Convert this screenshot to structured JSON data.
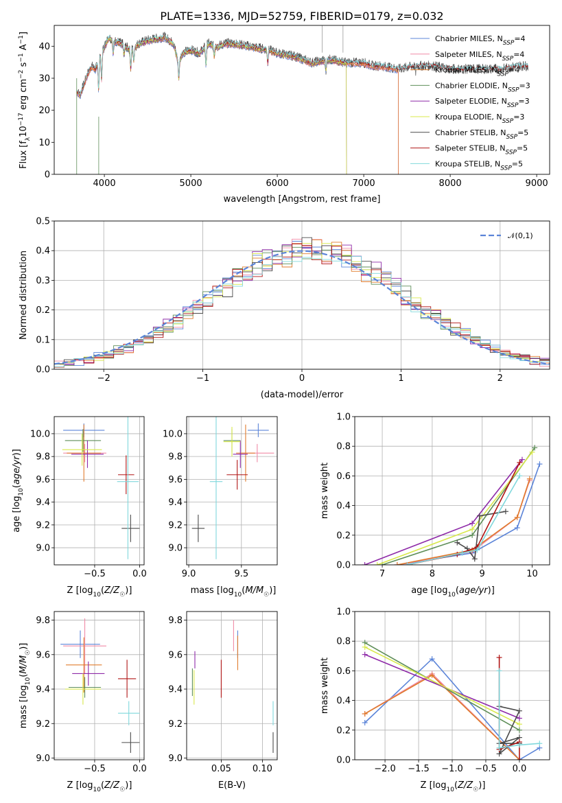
{
  "figure_title": "PLATE=1336, MJD=52759, FIBERID=0179, z=0.032",
  "series_colors": [
    "#5b84d8",
    "#f08aa6",
    "#e07b2c",
    "#5e8e58",
    "#8e2aa8",
    "#d8e84a",
    "#4a4a4a",
    "#b01414",
    "#7fd8dc"
  ],
  "chart_data": [
    {
      "type": "line",
      "panel": "spectrum",
      "xlabel": "wavelength [Angstrom, rest frame]",
      "ylabel": "Flux [fλ10⁻¹⁷ erg cm⁻² s⁻¹ A⁻¹]",
      "xlim": [
        3420,
        9150
      ],
      "ylim": [
        0,
        46.5
      ],
      "xticks": [
        4000,
        5000,
        6000,
        7000,
        8000,
        9000
      ],
      "yticks": [
        0,
        10,
        20,
        30,
        40
      ],
      "legend_position": "upper right",
      "series": [
        {
          "name": "Chabrier MILES, N_SSP=4",
          "x_range": [
            3680,
            7400
          ]
        },
        {
          "name": "Salpeter MILES, N_SSP=4",
          "x_range": [
            3680,
            7400
          ]
        },
        {
          "name": "Kroupa MILES, N_SSP=4",
          "x_range": [
            3680,
            7400
          ]
        },
        {
          "name": "Chabrier ELODIE, N_SSP=3",
          "x_range": [
            3900,
            6800
          ]
        },
        {
          "name": "Salpeter ELODIE, N_SSP=3",
          "x_range": [
            3900,
            6800
          ]
        },
        {
          "name": "Kroupa ELODIE, N_SSP=3",
          "x_range": [
            3900,
            6800
          ]
        },
        {
          "name": "Chabrier STELIB, N_SSP=5",
          "x_range": [
            3680,
            8900
          ]
        },
        {
          "name": "Salpeter STELIB, N_SSP=5",
          "x_range": [
            3680,
            8900
          ]
        },
        {
          "name": "Kroupa STELIB, N_SSP=5",
          "x_range": [
            3680,
            8900
          ]
        }
      ],
      "continuum": {
        "x": [
          3680,
          3720,
          3800,
          3850,
          3900,
          3950,
          4000,
          4050,
          4100,
          4200,
          4300,
          4400,
          4500,
          4700,
          4800,
          4860,
          4900,
          5000,
          5100,
          5200,
          5300,
          5400,
          5500,
          5700,
          5900,
          6000,
          6200,
          6400,
          6600,
          6800,
          7000,
          7100,
          7200,
          7400,
          7600,
          7800,
          8000,
          8200,
          8400,
          8600,
          8800,
          8900
        ],
        "y": [
          25,
          24,
          30,
          33,
          32,
          36,
          39,
          42,
          41,
          40,
          38,
          40,
          41,
          42,
          40,
          34,
          37,
          38,
          37,
          40,
          39,
          40,
          40,
          39,
          38,
          37,
          36,
          34,
          35,
          34,
          34,
          33,
          33,
          32,
          33,
          33,
          32,
          32,
          32,
          32,
          33,
          33
        ]
      }
    },
    {
      "type": "histogram",
      "panel": "residuals",
      "xlabel": "(data-model)/error",
      "ylabel": "Normed distribution",
      "xlim": [
        -2.5,
        2.5
      ],
      "ylim": [
        0,
        0.5
      ],
      "xticks": [
        -2,
        -1,
        0,
        1,
        2
      ],
      "yticks": [
        0.0,
        0.1,
        0.2,
        0.3,
        0.4,
        0.5
      ],
      "grid": true,
      "legend": "𝒩(0,1)",
      "legend_position": "upper right",
      "bin_width": 0.1,
      "reference_curve": "standard normal pdf"
    },
    {
      "type": "scatter",
      "panel": "age-vs-Z",
      "xlabel": "Z [log10(Z/Z☉)]",
      "ylabel": "age  [log10(age/yr)]",
      "xlim": [
        -0.95,
        0.05
      ],
      "ylim": [
        8.85,
        10.15
      ],
      "xticks": [
        -0.5,
        0.0
      ],
      "yticks": [
        9.0,
        9.2,
        9.4,
        9.6,
        9.8,
        10.0
      ],
      "points": [
        {
          "x": -0.62,
          "y": 10.03,
          "xerr": 0.23,
          "yerr": 0.06
        },
        {
          "x": -0.61,
          "y": 9.83,
          "xerr": 0.24,
          "yerr": 0.08
        },
        {
          "x": -0.62,
          "y": 9.83,
          "xerr": 0.19,
          "yerr": 0.25
        },
        {
          "x": -0.63,
          "y": 9.94,
          "xerr": 0.2,
          "yerr": 0.1
        },
        {
          "x": -0.58,
          "y": 9.82,
          "xerr": 0.18,
          "yerr": 0.12
        },
        {
          "x": -0.64,
          "y": 9.86,
          "xerr": 0.22,
          "yerr": 0.14
        },
        {
          "x": -0.1,
          "y": 9.17,
          "xerr": 0.1,
          "yerr": 0.12
        },
        {
          "x": -0.15,
          "y": 9.64,
          "xerr": 0.09,
          "yerr": 0.17
        },
        {
          "x": -0.13,
          "y": 9.58,
          "xerr": 0.12,
          "yerr": 0.68
        }
      ]
    },
    {
      "type": "scatter",
      "panel": "age-vs-mass",
      "xlabel": "mass [log10(M/M☉)]",
      "ylabel": "",
      "xlim": [
        8.98,
        9.84
      ],
      "ylim": [
        8.85,
        10.15
      ],
      "xticks": [
        9.0,
        9.5
      ],
      "yticks": [
        9.0,
        9.2,
        9.4,
        9.6,
        9.8,
        10.0
      ],
      "points": [
        {
          "x": 9.66,
          "y": 10.03,
          "xerr": 0.1,
          "yerr": 0.06
        },
        {
          "x": 9.65,
          "y": 9.83,
          "xerr": 0.16,
          "yerr": 0.08
        },
        {
          "x": 9.54,
          "y": 9.83,
          "xerr": 0.09,
          "yerr": 0.25
        },
        {
          "x": 9.41,
          "y": 9.94,
          "xerr": 0.08,
          "yerr": 0.1
        },
        {
          "x": 9.49,
          "y": 9.82,
          "xerr": 0.07,
          "yerr": 0.12
        },
        {
          "x": 9.41,
          "y": 9.93,
          "xerr": 0.08,
          "yerr": 0.13
        },
        {
          "x": 9.09,
          "y": 9.17,
          "xerr": 0.06,
          "yerr": 0.12
        },
        {
          "x": 9.46,
          "y": 9.64,
          "xerr": 0.1,
          "yerr": 0.13
        },
        {
          "x": 9.26,
          "y": 9.58,
          "xerr": 0.06,
          "yerr": 0.68
        }
      ]
    },
    {
      "type": "line",
      "panel": "weight-vs-age",
      "xlabel": "age  [log10(age/yr)]",
      "ylabel": "mass weight",
      "xlim": [
        6.45,
        10.35
      ],
      "ylim": [
        0,
        1
      ],
      "xticks": [
        7,
        8,
        9,
        10
      ],
      "yticks": [
        0.0,
        0.2,
        0.4,
        0.6,
        0.8,
        1.0
      ],
      "grid": true,
      "series": [
        {
          "x": [
            7.3,
            8.8,
            9.7,
            10.15
          ],
          "y": [
            0.0,
            0.08,
            0.25,
            0.68
          ]
        },
        {
          "x": [
            7.3,
            8.8,
            9.7,
            9.95
          ],
          "y": [
            0.0,
            0.09,
            0.32,
            0.57
          ]
        },
        {
          "x": [
            7.3,
            8.8,
            9.7,
            9.95
          ],
          "y": [
            0.0,
            0.1,
            0.32,
            0.58
          ]
        },
        {
          "x": [
            7.0,
            8.8,
            10.05
          ],
          "y": [
            0.0,
            0.2,
            0.79
          ]
        },
        {
          "x": [
            6.65,
            8.8,
            9.8
          ],
          "y": [
            0.0,
            0.28,
            0.71
          ]
        },
        {
          "x": [
            6.9,
            8.8,
            10.0
          ],
          "y": [
            0.0,
            0.24,
            0.76
          ]
        },
        {
          "x": [
            8.5,
            8.7,
            8.85,
            8.95,
            9.47
          ],
          "y": [
            0.15,
            0.11,
            0.04,
            0.33,
            0.36
          ]
        },
        {
          "x": [
            7.5,
            8.5,
            8.9,
            9.75
          ],
          "y": [
            0.0,
            0.07,
            0.12,
            0.69
          ]
        },
        {
          "x": [
            7.5,
            8.6,
            8.9,
            9.75
          ],
          "y": [
            0.0,
            0.08,
            0.1,
            0.6
          ]
        }
      ]
    },
    {
      "type": "scatter",
      "panel": "mass-vs-Z",
      "xlabel": "Z [log10(Z/Z☉)]",
      "ylabel": "mass [log10(M/M☉)]",
      "xlim": [
        -0.95,
        0.05
      ],
      "ylim": [
        8.99,
        9.85
      ],
      "xticks": [
        -0.5,
        0.0
      ],
      "yticks": [
        9.0,
        9.2,
        9.4,
        9.6,
        9.8
      ],
      "points": [
        {
          "x": -0.66,
          "y": 9.66,
          "xerr": 0.22,
          "yerr": 0.08
        },
        {
          "x": -0.61,
          "y": 9.65,
          "xerr": 0.24,
          "yerr": 0.16
        },
        {
          "x": -0.62,
          "y": 9.54,
          "xerr": 0.2,
          "yerr": 0.16
        },
        {
          "x": -0.61,
          "y": 9.41,
          "xerr": 0.18,
          "yerr": 0.06
        },
        {
          "x": -0.57,
          "y": 9.49,
          "xerr": 0.18,
          "yerr": 0.07
        },
        {
          "x": -0.63,
          "y": 9.4,
          "xerr": 0.2,
          "yerr": 0.09
        },
        {
          "x": -0.1,
          "y": 9.09,
          "xerr": 0.1,
          "yerr": 0.06
        },
        {
          "x": -0.14,
          "y": 9.46,
          "xerr": 0.1,
          "yerr": 0.11
        },
        {
          "x": -0.12,
          "y": 9.26,
          "xerr": 0.12,
          "yerr": 0.07
        }
      ]
    },
    {
      "type": "scatter",
      "panel": "mass-vs-EBV",
      "xlabel": "E(B-V)",
      "ylabel": "",
      "xlim": [
        0.008,
        0.118
      ],
      "ylim": [
        8.99,
        9.85
      ],
      "xticks": [
        0.05,
        0.1
      ],
      "yticks": [
        9.0,
        9.2,
        9.4,
        9.6,
        9.8
      ],
      "points": [
        {
          "x": 0.07,
          "y": 9.66,
          "yerr": 0.08
        },
        {
          "x": 0.065,
          "y": 9.71,
          "yerr": 0.09
        },
        {
          "x": 0.07,
          "y": 9.61,
          "yerr": 0.1
        },
        {
          "x": 0.015,
          "y": 9.44,
          "yerr": 0.08
        },
        {
          "x": 0.018,
          "y": 9.57,
          "yerr": 0.05
        },
        {
          "x": 0.017,
          "y": 9.41,
          "yerr": 0.1
        },
        {
          "x": 0.113,
          "y": 9.09,
          "yerr": 0.06
        },
        {
          "x": 0.05,
          "y": 9.46,
          "yerr": 0.11
        },
        {
          "x": 0.113,
          "y": 9.26,
          "yerr": 0.07
        }
      ]
    },
    {
      "type": "line",
      "panel": "weight-vs-Z",
      "xlabel": "Z [log10(Z/Z☉)]",
      "ylabel": "mass weight",
      "xlim": [
        -2.45,
        0.45
      ],
      "ylim": [
        0,
        1
      ],
      "xticks": [
        -2.0,
        -1.5,
        -1.0,
        -0.5,
        0.0
      ],
      "yticks": [
        0.0,
        0.2,
        0.4,
        0.6,
        0.8,
        1.0
      ],
      "grid": true,
      "series": [
        {
          "x": [
            -2.3,
            -1.3,
            0.0,
            0.3
          ],
          "y": [
            0.25,
            0.68,
            0.0,
            0.08
          ]
        },
        {
          "x": [
            -2.3,
            -1.3,
            0.0
          ],
          "y": [
            0.31,
            0.58,
            0.0
          ]
        },
        {
          "x": [
            -2.3,
            -1.3,
            0.0
          ],
          "y": [
            0.31,
            0.57,
            0.0
          ]
        },
        {
          "x": [
            -2.3,
            0.0
          ],
          "y": [
            0.79,
            0.2
          ]
        },
        {
          "x": [
            -2.3,
            0.0
          ],
          "y": [
            0.71,
            0.28
          ]
        },
        {
          "x": [
            -2.3,
            0.0
          ],
          "y": [
            0.76,
            0.24
          ]
        },
        {
          "x": [
            -0.3,
            0.0,
            -0.3,
            0.0,
            -0.3,
            0.0
          ],
          "y": [
            0.36,
            0.33,
            0.04,
            0.15,
            0.11,
            0.11
          ]
        },
        {
          "x": [
            -0.3,
            -0.3,
            0.0,
            0.0
          ],
          "y": [
            0.69,
            0.07,
            0.12,
            0.0
          ]
        },
        {
          "x": [
            -0.3,
            -0.3,
            0.0,
            0.3
          ],
          "y": [
            0.6,
            0.08,
            0.1,
            0.11
          ]
        }
      ]
    }
  ]
}
